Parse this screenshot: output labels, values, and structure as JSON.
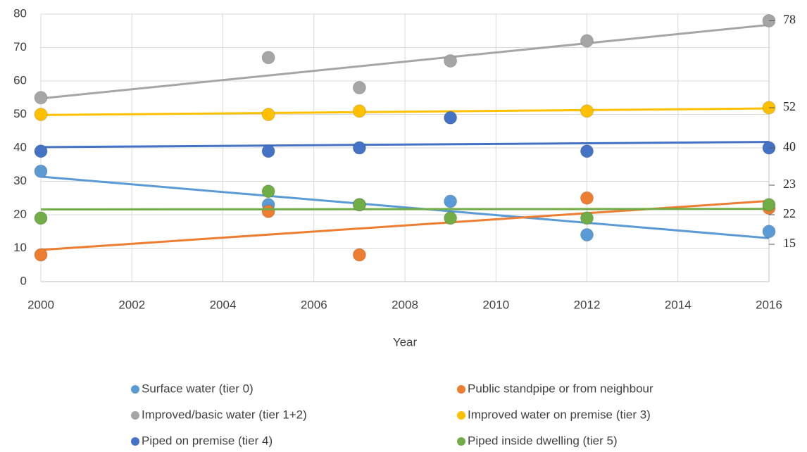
{
  "chart_data": {
    "type": "scatter",
    "trendline": "linear",
    "label_last": true,
    "x_label": "Year",
    "x": [
      2000,
      2005,
      2007,
      2009,
      2012,
      2016
    ],
    "xlim": [
      2000,
      2016
    ],
    "xticks": [
      2000,
      2002,
      2004,
      2006,
      2008,
      2010,
      2012,
      2014,
      2016
    ],
    "ylim": [
      0,
      80
    ],
    "yticks": [
      0,
      10,
      20,
      30,
      40,
      50,
      60,
      70,
      80
    ],
    "grid": true,
    "series": [
      {
        "name": "Surface water (tier 0)",
        "color": "#5b9bd5",
        "values": [
          33,
          23,
          23,
          24,
          14,
          15
        ]
      },
      {
        "name": "Public standpipe or from neighbour",
        "color": "#ed7d31",
        "values": [
          8,
          21,
          8,
          null,
          25,
          22
        ]
      },
      {
        "name": "Improved/basic water (tier  1+2)",
        "color": "#a5a5a5",
        "values": [
          55,
          67,
          58,
          66,
          72,
          78
        ]
      },
      {
        "name": "Improved water on premise (tier 3)",
        "color": "#ffc000",
        "values": [
          50,
          50,
          51,
          null,
          51,
          52
        ]
      },
      {
        "name": "Piped on premise (tier 4)",
        "color": "#4472c4",
        "values": [
          39,
          39,
          40,
          49,
          39,
          40
        ]
      },
      {
        "name": "Piped inside dwelling (tier 5)",
        "color": "#70ad47",
        "values": [
          19,
          27,
          23,
          19,
          19,
          23
        ]
      }
    ]
  }
}
